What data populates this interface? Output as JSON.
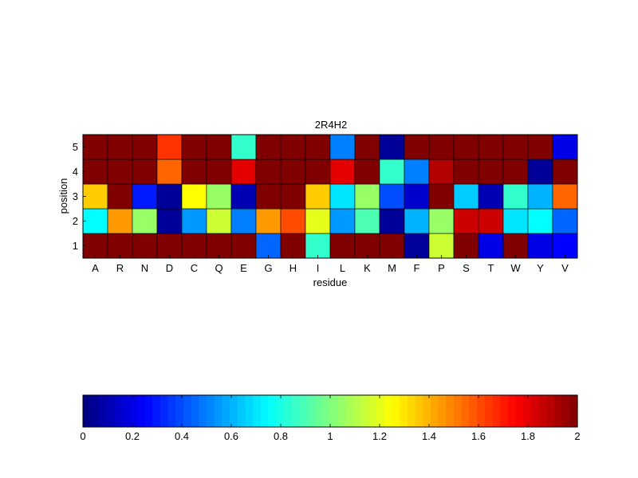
{
  "chart_data": [
    {
      "type": "heatmap",
      "title": "2R4H2",
      "xlabel": "residue",
      "ylabel": "position",
      "x_categories": [
        "A",
        "R",
        "N",
        "D",
        "C",
        "Q",
        "E",
        "G",
        "H",
        "I",
        "L",
        "K",
        "M",
        "F",
        "P",
        "S",
        "T",
        "W",
        "Y",
        "V"
      ],
      "y_categories": [
        "1",
        "2",
        "3",
        "4",
        "5"
      ],
      "colormap": "jet",
      "clim": [
        0,
        2
      ],
      "values": [
        [
          2.0,
          2.0,
          2.0,
          2.0,
          2.0,
          2.0,
          2.0,
          0.45,
          2.0,
          0.85,
          2.0,
          2.0,
          2.0,
          0.05,
          1.15,
          2.0,
          0.2,
          2.0,
          0.2,
          0.25
        ],
        [
          0.75,
          1.45,
          1.05,
          0.05,
          0.55,
          1.15,
          0.5,
          1.45,
          1.6,
          1.2,
          0.55,
          0.9,
          0.05,
          0.6,
          1.05,
          1.85,
          1.85,
          0.7,
          0.75,
          0.45
        ],
        [
          1.35,
          2.0,
          0.3,
          0.05,
          1.25,
          1.05,
          0.1,
          2.0,
          2.0,
          1.35,
          0.7,
          1.05,
          0.4,
          0.15,
          2.0,
          0.65,
          0.1,
          0.85,
          0.6,
          1.55
        ],
        [
          2.0,
          2.0,
          2.0,
          1.55,
          2.0,
          2.0,
          1.8,
          2.0,
          2.0,
          2.0,
          1.8,
          2.0,
          0.85,
          0.5,
          1.9,
          2.0,
          2.0,
          2.0,
          0.05,
          2.0
        ],
        [
          2.0,
          2.0,
          2.0,
          1.65,
          2.0,
          2.0,
          0.85,
          2.0,
          2.0,
          2.0,
          0.5,
          2.0,
          0.05,
          2.0,
          2.0,
          2.0,
          2.0,
          2.0,
          2.0,
          0.2
        ]
      ]
    },
    {
      "type": "colorbar",
      "orientation": "horizontal",
      "colormap": "jet",
      "range": [
        0,
        2
      ],
      "ticks": [
        "0",
        "0.2",
        "0.4",
        "0.6",
        "0.8",
        "1",
        "1.2",
        "1.4",
        "1.6",
        "1.8",
        "2"
      ]
    }
  ]
}
